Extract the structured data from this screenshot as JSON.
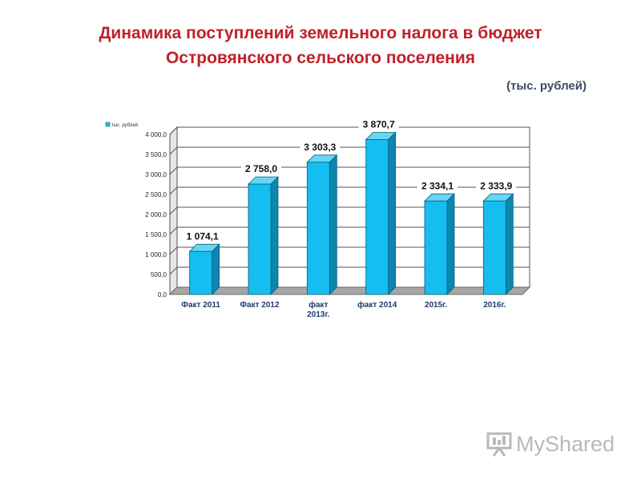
{
  "header": {
    "title_line1": "Динамика поступлений земельного налога в бюджет",
    "title_line2": "Островянского сельского поселения",
    "unit_note": "(тыс. рублей)"
  },
  "watermark": {
    "text": "MyShared"
  },
  "chart_data": {
    "type": "bar",
    "legend": "тыс. рублей",
    "legend_position": "top-left",
    "grid": true,
    "ylim": [
      0,
      4000
    ],
    "ytick_step": 500,
    "ytick_labels": [
      "0,0",
      "500,0",
      "1 000,0",
      "1 500,0",
      "2 000,0",
      "2 500,0",
      "3 000,0",
      "3 500,0",
      "4 000,0"
    ],
    "categories": [
      "Факт 2011",
      "Факт 2012",
      "факт 2013г.",
      "факт 2014",
      "2015г.",
      "2016г."
    ],
    "category_lines": [
      [
        "Факт 2011"
      ],
      [
        "Факт 2012"
      ],
      [
        "факт",
        "2013г."
      ],
      [
        "факт 2014"
      ],
      [
        "2015г."
      ],
      [
        "2016г."
      ]
    ],
    "values": [
      1074.1,
      2758.0,
      3303.3,
      3870.7,
      2334.1,
      2333.9
    ],
    "value_labels": [
      "1 074,1",
      "2 758,0",
      "3 303,3",
      "3 870,7",
      "2 334,1",
      "2 333,9"
    ],
    "colors": {
      "bar_front": "#16bdf0",
      "bar_side": "#0b86ad",
      "bar_top": "#66d6f7",
      "wall": "#ffffff",
      "floor": "#a6a6a6"
    }
  }
}
